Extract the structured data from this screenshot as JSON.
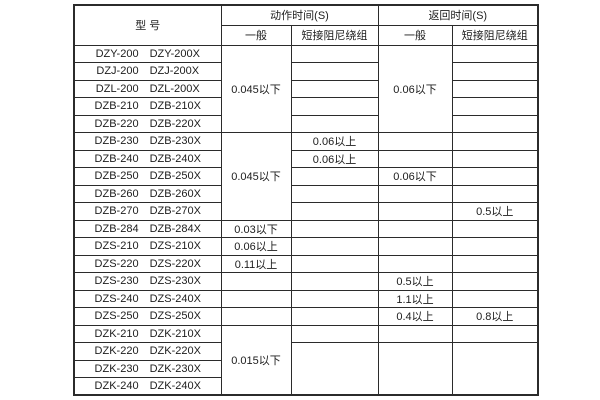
{
  "colors": {
    "background": "#ffffff",
    "border": "#2b2b2b",
    "text": "#1c1c1c"
  },
  "table": {
    "header": {
      "model": "型  号",
      "action_time": "动作时间(S)",
      "return_time": "返回时间(S)",
      "general_act": "一般",
      "damping_act": "短接阻尼绕组",
      "general_ret": "一般",
      "damping_ret": "短接阻尼绕组"
    },
    "rows": [
      {
        "model_a": "DZY-200",
        "model_b": "DZY-200X"
      },
      {
        "model_a": "DZJ-200",
        "model_b": "DZJ-200X"
      },
      {
        "model_a": "DZL-200",
        "model_b": "DZL-200X"
      },
      {
        "model_a": "DZB-210",
        "model_b": "DZB-210X"
      },
      {
        "model_a": "DZB-220",
        "model_b": "DZB-220X"
      },
      {
        "model_a": "DZB-230",
        "model_b": "DZB-230X"
      },
      {
        "model_a": "DZB-240",
        "model_b": "DZB-240X"
      },
      {
        "model_a": "DZB-250",
        "model_b": "DZB-250X"
      },
      {
        "model_a": "DZB-260",
        "model_b": "DZB-260X"
      },
      {
        "model_a": "DZB-270",
        "model_b": "DZB-270X"
      },
      {
        "model_a": "DZB-284",
        "model_b": "DZB-284X"
      },
      {
        "model_a": "DZS-210",
        "model_b": "DZS-210X"
      },
      {
        "model_a": "DZS-220",
        "model_b": "DZS-220X"
      },
      {
        "model_a": "DZS-230",
        "model_b": "DZS-230X"
      },
      {
        "model_a": "DZS-240",
        "model_b": "DZS-240X"
      },
      {
        "model_a": "DZS-250",
        "model_b": "DZS-250X"
      },
      {
        "model_a": "DZK-210",
        "model_b": "DZK-210X"
      },
      {
        "model_a": "DZK-220",
        "model_b": "DZK-220X"
      },
      {
        "model_a": "DZK-230",
        "model_b": "DZK-230X"
      },
      {
        "model_a": "DZK-240",
        "model_b": "DZK-240X"
      }
    ],
    "columns": {
      "act_general": [
        {
          "row": 1,
          "span": 5,
          "text": "0.045以下"
        },
        {
          "row": 6,
          "span": 5,
          "text": "0.045以下"
        },
        {
          "row": 11,
          "span": 1,
          "text": "0.03以下"
        },
        {
          "row": 12,
          "span": 1,
          "text": "0.06以上"
        },
        {
          "row": 13,
          "span": 1,
          "text": "0.11以上"
        },
        {
          "row": 14,
          "span": 1,
          "text": ""
        },
        {
          "row": 15,
          "span": 1,
          "text": ""
        },
        {
          "row": 16,
          "span": 1,
          "text": ""
        },
        {
          "row": 17,
          "span": 4,
          "text": "0.015以下"
        }
      ],
      "act_damping": [
        {
          "row": 1,
          "span": 1,
          "text": ""
        },
        {
          "row": 2,
          "span": 1,
          "text": ""
        },
        {
          "row": 3,
          "span": 1,
          "text": ""
        },
        {
          "row": 4,
          "span": 1,
          "text": ""
        },
        {
          "row": 5,
          "span": 1,
          "text": ""
        },
        {
          "row": 6,
          "span": 1,
          "text": "0.06以上"
        },
        {
          "row": 7,
          "span": 1,
          "text": "0.06以上"
        },
        {
          "row": 8,
          "span": 1,
          "text": ""
        },
        {
          "row": 9,
          "span": 1,
          "text": ""
        },
        {
          "row": 10,
          "span": 1,
          "text": ""
        },
        {
          "row": 11,
          "span": 1,
          "text": ""
        },
        {
          "row": 12,
          "span": 1,
          "text": ""
        },
        {
          "row": 13,
          "span": 1,
          "text": ""
        },
        {
          "row": 14,
          "span": 1,
          "text": ""
        },
        {
          "row": 15,
          "span": 1,
          "text": ""
        },
        {
          "row": 16,
          "span": 1,
          "text": ""
        },
        {
          "row": 17,
          "span": 1,
          "text": ""
        },
        {
          "row": 18,
          "span": 3,
          "text": ""
        }
      ],
      "ret_general": [
        {
          "row": 1,
          "span": 5,
          "text": "0.06以下"
        },
        {
          "row": 6,
          "span": 1,
          "text": ""
        },
        {
          "row": 7,
          "span": 1,
          "text": ""
        },
        {
          "row": 8,
          "span": 1,
          "text": "0.06以下"
        },
        {
          "row": 9,
          "span": 1,
          "text": ""
        },
        {
          "row": 10,
          "span": 1,
          "text": ""
        },
        {
          "row": 11,
          "span": 1,
          "text": ""
        },
        {
          "row": 12,
          "span": 1,
          "text": ""
        },
        {
          "row": 13,
          "span": 1,
          "text": ""
        },
        {
          "row": 14,
          "span": 1,
          "text": "0.5以上"
        },
        {
          "row": 15,
          "span": 1,
          "text": "1.1以上"
        },
        {
          "row": 16,
          "span": 1,
          "text": "0.4以上"
        },
        {
          "row": 17,
          "span": 1,
          "text": ""
        },
        {
          "row": 18,
          "span": 3,
          "text": ""
        }
      ],
      "ret_damping": [
        {
          "row": 1,
          "span": 1,
          "text": ""
        },
        {
          "row": 2,
          "span": 1,
          "text": ""
        },
        {
          "row": 3,
          "span": 1,
          "text": ""
        },
        {
          "row": 4,
          "span": 1,
          "text": ""
        },
        {
          "row": 5,
          "span": 1,
          "text": ""
        },
        {
          "row": 6,
          "span": 1,
          "text": ""
        },
        {
          "row": 7,
          "span": 1,
          "text": ""
        },
        {
          "row": 8,
          "span": 1,
          "text": ""
        },
        {
          "row": 9,
          "span": 1,
          "text": ""
        },
        {
          "row": 10,
          "span": 1,
          "text": "0.5以上"
        },
        {
          "row": 11,
          "span": 1,
          "text": ""
        },
        {
          "row": 12,
          "span": 1,
          "text": ""
        },
        {
          "row": 13,
          "span": 1,
          "text": ""
        },
        {
          "row": 14,
          "span": 1,
          "text": ""
        },
        {
          "row": 15,
          "span": 1,
          "text": ""
        },
        {
          "row": 16,
          "span": 1,
          "text": "0.8以上"
        },
        {
          "row": 17,
          "span": 1,
          "text": ""
        },
        {
          "row": 18,
          "span": 3,
          "text": ""
        }
      ]
    }
  }
}
